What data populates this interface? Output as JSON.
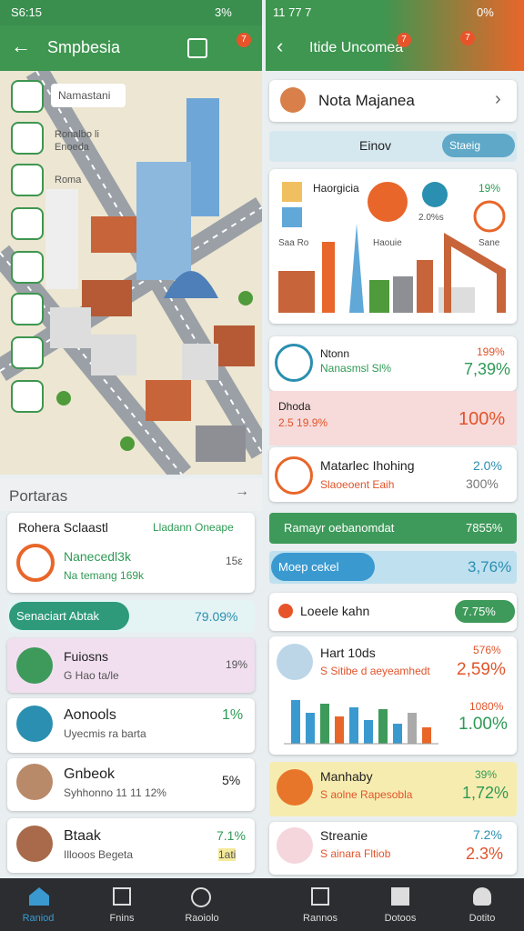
{
  "status": {
    "left_time": "S6:15",
    "left_battery": "3%",
    "right_time": "11 77 7",
    "right_battery": "0%"
  },
  "left": {
    "header": {
      "title": "Smpbesia",
      "badge": "7"
    },
    "map": {
      "labels": [
        "Namastani",
        "Ronalbo li",
        "Enoeda",
        "Roma"
      ]
    },
    "section_title": "Portaras",
    "card": {
      "title": "Rohera Sclaastl",
      "link": "Lladann Oneape",
      "item_title": "Nanecedl3k",
      "item_subtitle": "Na temang 169k",
      "item_value": "15ε"
    },
    "tab": {
      "label": "Senaciart Abtak",
      "value": "79.09%"
    },
    "list": [
      {
        "title": "Fuiosns",
        "subtitle": "G Hao ta/le",
        "value": "19%"
      },
      {
        "title": "Aonools",
        "subtitle": "Uyecmis ra barta",
        "value": "1%"
      },
      {
        "title": "Gnbeok",
        "subtitle": "Syhhonno 11 11 12%",
        "value": "5%"
      },
      {
        "title": "Btaak",
        "subtitle": "Illooos Begeta",
        "value": "7.1%",
        "note": "1ati"
      }
    ],
    "nav": [
      "Raniod",
      "Fnins",
      "Raoiolo"
    ]
  },
  "right": {
    "header": {
      "title": "Itide Uncomea",
      "badge": "7",
      "badge2": "7"
    },
    "search": "Nota Majanea",
    "filter": {
      "label": "Einov",
      "pill": "Staeig"
    },
    "illustration": {
      "title": "Haorgicia",
      "pct": "19%",
      "pct2": "2.0%s",
      "label1": "Saa Ro",
      "label2": "Haouie",
      "label3": "Sane"
    },
    "rows": [
      {
        "title": "Ntonn",
        "subtitle": "Nanasmsl Sl%",
        "top": "199%",
        "value": "7,39%"
      },
      {
        "title": "Dhoda",
        "subtitle": "2.5 19.9%",
        "value": "100%"
      },
      {
        "title": "Matarlec Ihohing",
        "subtitle": "Slaoeoent Eaih",
        "top": "2.0%",
        "value": "300%"
      }
    ],
    "green_bar": {
      "label": "Ramayr oebanomdat",
      "value": "7855%"
    },
    "blue_bar": {
      "label": "Moep cekel",
      "value": "3,76%"
    },
    "loeele": {
      "label": "Loeele kahn",
      "value": "7.75%"
    },
    "hart": {
      "title": "Hart 10ds",
      "subtitle": "S Sitibe d aeyeamhedt",
      "top": "576%",
      "value": "2,59%"
    },
    "chart": {
      "top": "1080%",
      "value": "1.00%"
    },
    "manhaby": {
      "title": "Manhaby",
      "subtitle": "S aolne Rapesobla",
      "top": "39%",
      "value": "1,72%"
    },
    "streanie": {
      "title": "Streanie",
      "subtitle": "S ainara Fltiob",
      "top": "7.2%",
      "value": "2.3%"
    },
    "nav": [
      "Rannos",
      "Dotoos",
      "Dotito"
    ]
  }
}
